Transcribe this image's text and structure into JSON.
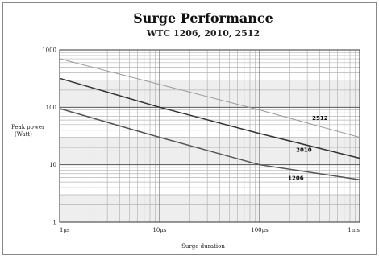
{
  "chart_data": {
    "type": "line",
    "title": "Surge Performance",
    "subtitle": "WTC 1206, 2010, 2512",
    "xlabel": "Surge duration",
    "ylabel": [
      "Peak power",
      "(Watt)"
    ],
    "x_scale": "log",
    "y_scale": "log",
    "x_ticks": [
      "1µs",
      "10µs",
      "100µs",
      "1ms"
    ],
    "y_ticks": [
      "1000",
      "100",
      "10",
      "1"
    ],
    "xlim": [
      1,
      1000
    ],
    "ylim": [
      1,
      1000
    ],
    "grid": true,
    "series": [
      {
        "name": "2512",
        "x": [
          1,
          10,
          100,
          1000
        ],
        "y": [
          700,
          250,
          90,
          30
        ],
        "label": "2512"
      },
      {
        "name": "2010",
        "x": [
          1,
          10,
          100,
          1000
        ],
        "y": [
          320,
          100,
          35,
          13
        ],
        "label": "2010"
      },
      {
        "name": "1206",
        "x": [
          1,
          10,
          100,
          1000
        ],
        "y": [
          95,
          30,
          10,
          5.5
        ],
        "label": "1206"
      }
    ]
  }
}
